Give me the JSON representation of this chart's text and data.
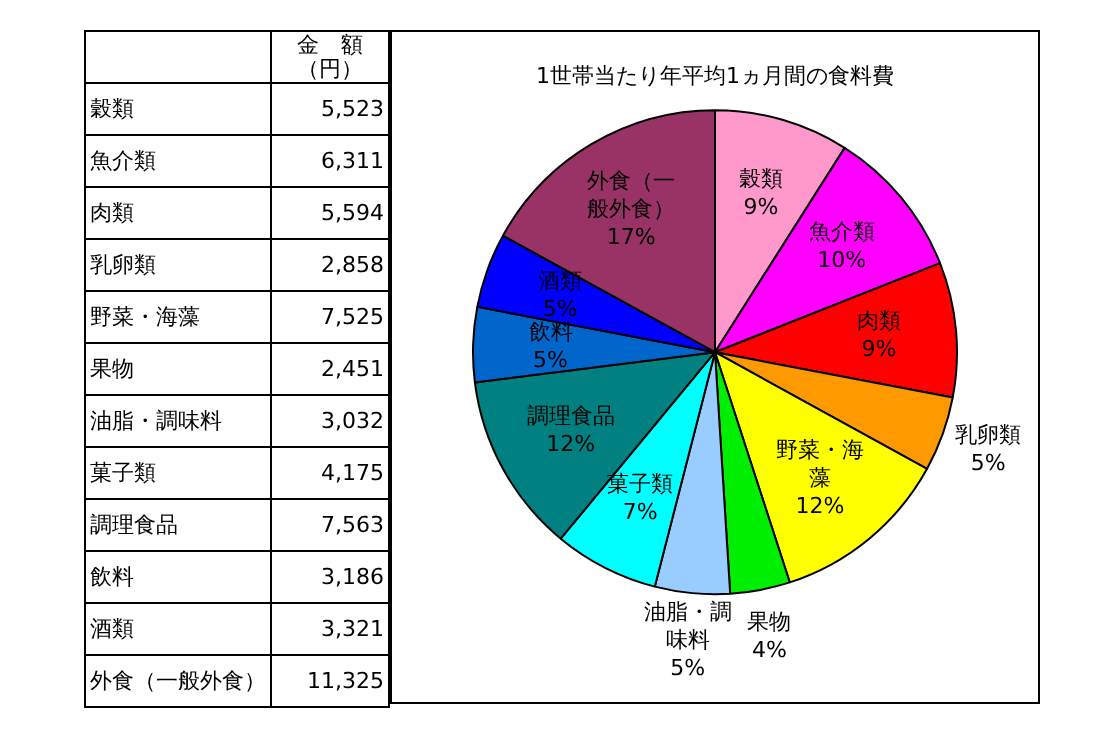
{
  "chart_data": [
    {
      "type": "other",
      "categories": [
        "穀類",
        "魚介類",
        "肉類",
        "乳卵類",
        "野菜・海藻",
        "果物",
        "油脂・調味料",
        "菓子類",
        "調理食品",
        "飲料",
        "酒類",
        "外食（一般外食）"
      ],
      "values": [
        5523,
        6311,
        5594,
        2858,
        7525,
        2451,
        3032,
        4175,
        7563,
        3186,
        3321,
        11325
      ],
      "value_labels": [
        "5,523",
        "6,311",
        "5,594",
        "2,858",
        "7,525",
        "2,451",
        "3,032",
        "4,175",
        "7,563",
        "3,186",
        "3,321",
        "11,325"
      ],
      "annotations": [
        "金　額（円）"
      ]
    },
    {
      "type": "pie",
      "title": "1世帯当たり年平均1ヵ月間の食料費",
      "categories": [
        "穀類",
        "魚介類",
        "肉類",
        "乳卵類",
        "野菜・海藻",
        "果物",
        "油脂・調味料",
        "菓子類",
        "調理食品",
        "飲料",
        "酒類",
        "外食（一般外食）"
      ],
      "values": [
        9,
        10,
        9,
        5,
        12,
        4,
        5,
        7,
        12,
        5,
        5,
        17
      ],
      "value_labels": [
        "9%",
        "10%",
        "9%",
        "5%",
        "12%",
        "4%",
        "5%",
        "7%",
        "12%",
        "5%",
        "5%",
        "17%"
      ],
      "colors": [
        "#ff99cc",
        "#ff00ff",
        "#ff0000",
        "#ff9900",
        "#ffff00",
        "#00ee00",
        "#99ccff",
        "#00ffff",
        "#008080",
        "#0066cc",
        "#0000ff",
        "#993366"
      ],
      "legend": false
    }
  ]
}
